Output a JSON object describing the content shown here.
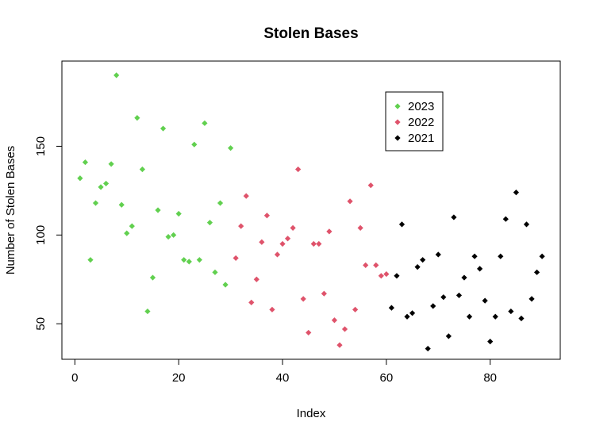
{
  "chart_data": {
    "type": "scatter",
    "title": "Stolen Bases",
    "xlabel": "Index",
    "ylabel": "Number of Stolen Bases",
    "xlim": [
      -2.5,
      93.5
    ],
    "ylim": [
      30,
      198
    ],
    "x_ticks": [
      0,
      20,
      40,
      60,
      80
    ],
    "y_ticks": [
      50,
      100,
      150
    ],
    "legend_position": "top-right",
    "series": [
      {
        "name": "2023",
        "color": "#61D04F",
        "x": [
          1,
          2,
          3,
          4,
          5,
          6,
          7,
          8,
          9,
          10,
          11,
          12,
          13,
          14,
          15,
          16,
          17,
          18,
          19,
          20,
          21,
          22,
          23,
          24,
          25,
          26,
          27,
          28,
          29,
          30
        ],
        "y": [
          132,
          141,
          86,
          118,
          127,
          129,
          140,
          190,
          117,
          101,
          105,
          166,
          137,
          57,
          76,
          114,
          160,
          99,
          100,
          112,
          86,
          85,
          151,
          86,
          163,
          107,
          79,
          118,
          72,
          149
        ]
      },
      {
        "name": "2022",
        "color": "#DF536B",
        "x": [
          31,
          32,
          33,
          34,
          35,
          36,
          37,
          38,
          39,
          40,
          41,
          42,
          43,
          44,
          45,
          46,
          47,
          48,
          49,
          50,
          51,
          52,
          53,
          54,
          55,
          56,
          57,
          58,
          59,
          60
        ],
        "y": [
          87,
          105,
          122,
          62,
          75,
          96,
          111,
          58,
          89,
          95,
          98,
          104,
          137,
          64,
          45,
          95,
          95,
          67,
          102,
          52,
          38,
          47,
          119,
          58,
          104,
          83,
          128,
          83,
          77,
          78
        ]
      },
      {
        "name": "2021",
        "color": "#000000",
        "x": [
          61,
          62,
          63,
          64,
          65,
          66,
          67,
          68,
          69,
          70,
          71,
          72,
          73,
          74,
          75,
          76,
          77,
          78,
          79,
          80,
          81,
          82,
          83,
          84,
          85,
          86,
          87,
          88,
          89,
          90
        ],
        "y": [
          59,
          77,
          106,
          54,
          56,
          82,
          86,
          36,
          60,
          89,
          65,
          43,
          110,
          66,
          76,
          54,
          88,
          81,
          63,
          40,
          54,
          88,
          109,
          57,
          124,
          53,
          106,
          64,
          79,
          88
        ]
      }
    ]
  }
}
